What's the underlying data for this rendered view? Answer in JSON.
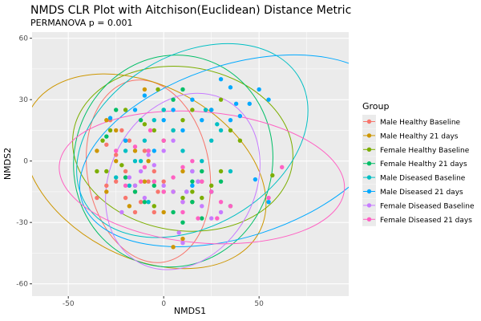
{
  "chart_data": {
    "type": "scatter",
    "title": "NMDS CLR Plot with Aitchison(Euclidean) Distance Metric",
    "subtitle": "PERMANOVA p = 0.001",
    "xlabel": "NMDS1",
    "ylabel": "NMDS2",
    "xlim": [
      -69,
      97
    ],
    "ylim": [
      -66,
      63
    ],
    "x_ticks": [
      -50,
      0,
      50
    ],
    "y_ticks": [
      -60,
      -30,
      0,
      30,
      60
    ],
    "x_tick_labels": [
      "-50",
      "0",
      "50"
    ],
    "y_tick_labels": [
      "-60",
      "-30",
      "0",
      "30",
      "60"
    ],
    "grid": true,
    "legend": {
      "title": "Group",
      "position": "right"
    },
    "series": [
      {
        "name": "Male Healthy Baseline",
        "color": "#F8766D",
        "points": [
          [
            -35,
            -18
          ],
          [
            -25,
            -10
          ],
          [
            -20,
            -5
          ],
          [
            -15,
            -15
          ],
          [
            -12,
            -20
          ],
          [
            -8,
            -10
          ],
          [
            -5,
            -25
          ],
          [
            -3,
            -15
          ],
          [
            -10,
            5
          ],
          [
            -18,
            10
          ],
          [
            -22,
            15
          ],
          [
            -28,
            20
          ],
          [
            -30,
            8
          ],
          [
            -25,
            3
          ],
          [
            -15,
            -25
          ],
          [
            -5,
            -5
          ],
          [
            0,
            -10
          ],
          [
            5,
            -15
          ],
          [
            10,
            -20
          ],
          [
            -20,
            -18
          ],
          [
            -30,
            -12
          ]
        ],
        "ellipse": {
          "cx": -8,
          "cy": -5,
          "rx": 32,
          "ry": 45,
          "angle": 10
        }
      },
      {
        "name": "Male Healthy 21 days",
        "color": "#CD9600",
        "points": [
          [
            -35,
            5
          ],
          [
            -30,
            20
          ],
          [
            -25,
            15
          ],
          [
            -20,
            10
          ],
          [
            -15,
            5
          ],
          [
            -8,
            0
          ],
          [
            -5,
            -10
          ],
          [
            0,
            -25
          ],
          [
            5,
            -15
          ],
          [
            10,
            -5
          ],
          [
            10,
            -38
          ],
          [
            5,
            -42
          ],
          [
            -10,
            -10
          ],
          [
            -25,
            0
          ],
          [
            -18,
            -22
          ],
          [
            -10,
            35
          ],
          [
            -30,
            -15
          ],
          [
            0,
            -15
          ],
          [
            15,
            -20
          ],
          [
            20,
            -10
          ]
        ],
        "ellipse": {
          "cx": -10,
          "cy": -5,
          "rx": 68,
          "ry": 42,
          "angle": -28
        }
      },
      {
        "name": "Female Healthy Baseline",
        "color": "#7CAE00",
        "points": [
          [
            -35,
            -5
          ],
          [
            -32,
            10
          ],
          [
            -28,
            15
          ],
          [
            -20,
            25
          ],
          [
            -10,
            18
          ],
          [
            -5,
            15
          ],
          [
            0,
            10
          ],
          [
            5,
            15
          ],
          [
            10,
            20
          ],
          [
            15,
            25
          ],
          [
            25,
            25
          ],
          [
            30,
            30
          ],
          [
            35,
            15
          ],
          [
            40,
            10
          ],
          [
            30,
            -5
          ],
          [
            -22,
            -2
          ],
          [
            -15,
            -12
          ],
          [
            -5,
            -22
          ],
          [
            10,
            -18
          ],
          [
            15,
            -15
          ],
          [
            20,
            -18
          ],
          [
            25,
            -12
          ],
          [
            -3,
            35
          ],
          [
            57,
            -7
          ],
          [
            -30,
            -5
          ]
        ],
        "ellipse": {
          "cx": 10,
          "cy": 6,
          "rx": 58,
          "ry": 40,
          "angle": -8
        }
      },
      {
        "name": "Female Healthy 21 days",
        "color": "#00BE67",
        "points": [
          [
            -30,
            12
          ],
          [
            -25,
            25
          ],
          [
            -20,
            -8
          ],
          [
            -15,
            -15
          ],
          [
            -10,
            -20
          ],
          [
            -5,
            -12
          ],
          [
            5,
            -25
          ],
          [
            10,
            -30
          ],
          [
            15,
            -20
          ],
          [
            20,
            -28
          ],
          [
            25,
            -15
          ],
          [
            -12,
            20
          ],
          [
            -8,
            5
          ],
          [
            0,
            25
          ],
          [
            5,
            30
          ],
          [
            10,
            35
          ],
          [
            15,
            -10
          ],
          [
            20,
            -5
          ],
          [
            30,
            -10
          ],
          [
            35,
            -22
          ]
        ],
        "ellipse": {
          "cx": 5,
          "cy": 0,
          "rx": 52,
          "ry": 52,
          "angle": -15
        }
      },
      {
        "name": "Male Diseased Baseline",
        "color": "#00BFC4",
        "points": [
          [
            -20,
            5
          ],
          [
            -15,
            0
          ],
          [
            -10,
            10
          ],
          [
            -5,
            20
          ],
          [
            0,
            25
          ],
          [
            5,
            15
          ],
          [
            10,
            5
          ],
          [
            15,
            -5
          ],
          [
            20,
            0
          ],
          [
            25,
            10
          ],
          [
            30,
            15
          ],
          [
            35,
            -5
          ],
          [
            -25,
            -8
          ],
          [
            -18,
            -12
          ],
          [
            -8,
            -20
          ],
          [
            12,
            -15
          ],
          [
            18,
            -10
          ],
          [
            -12,
            0
          ],
          [
            22,
            25
          ],
          [
            28,
            18
          ]
        ],
        "ellipse": {
          "cx": 15,
          "cy": 10,
          "rx": 65,
          "ry": 42,
          "angle": 30
        }
      },
      {
        "name": "Male Diseased 21 days",
        "color": "#00A9FF",
        "points": [
          [
            -28,
            21
          ],
          [
            -20,
            10
          ],
          [
            -15,
            25
          ],
          [
            -10,
            32
          ],
          [
            -5,
            5
          ],
          [
            0,
            20
          ],
          [
            5,
            25
          ],
          [
            10,
            15
          ],
          [
            15,
            30
          ],
          [
            20,
            20
          ],
          [
            25,
            25
          ],
          [
            30,
            40
          ],
          [
            35,
            36
          ],
          [
            40,
            22
          ],
          [
            45,
            28
          ],
          [
            50,
            35
          ],
          [
            55,
            30
          ],
          [
            48,
            -9
          ],
          [
            55,
            -20
          ],
          [
            35,
            20
          ],
          [
            38,
            28
          ],
          [
            25,
            -15
          ],
          [
            15,
            -12
          ]
        ],
        "ellipse": {
          "cx": 38,
          "cy": 5,
          "rx": 85,
          "ry": 42,
          "angle": 18
        }
      },
      {
        "name": "Female Diseased Baseline",
        "color": "#C77CFF",
        "points": [
          [
            -18,
            -8
          ],
          [
            -12,
            -5
          ],
          [
            -8,
            3
          ],
          [
            -5,
            -2
          ],
          [
            0,
            -12
          ],
          [
            5,
            -15
          ],
          [
            10,
            -20
          ],
          [
            15,
            -5
          ],
          [
            20,
            -22
          ],
          [
            25,
            -28
          ],
          [
            30,
            -25
          ],
          [
            -10,
            -18
          ],
          [
            -15,
            -12
          ],
          [
            -22,
            -25
          ],
          [
            0,
            5
          ],
          [
            5,
            10
          ],
          [
            8,
            -35
          ],
          [
            10,
            -40
          ],
          [
            12,
            -15
          ],
          [
            18,
            -10
          ]
        ],
        "ellipse": {
          "cx": 10,
          "cy": -10,
          "rx": 38,
          "ry": 45,
          "angle": -28
        }
      },
      {
        "name": "Female Diseased 21 days",
        "color": "#FF61C3",
        "points": [
          [
            -25,
            5
          ],
          [
            -15,
            7
          ],
          [
            -10,
            -3
          ],
          [
            -5,
            -10
          ],
          [
            0,
            -15
          ],
          [
            5,
            -8
          ],
          [
            10,
            -3
          ],
          [
            15,
            0
          ],
          [
            20,
            -10
          ],
          [
            25,
            -15
          ],
          [
            30,
            -20
          ],
          [
            35,
            -22
          ],
          [
            55,
            -18
          ],
          [
            62,
            -3
          ],
          [
            -20,
            -12
          ],
          [
            -8,
            5
          ],
          [
            0,
            10
          ],
          [
            10,
            -25
          ],
          [
            18,
            -28
          ],
          [
            28,
            -28
          ],
          [
            -12,
            -10
          ],
          [
            -7,
            15
          ]
        ],
        "ellipse": {
          "cx": 20,
          "cy": -8,
          "rx": 75,
          "ry": 32,
          "angle": -5
        }
      }
    ]
  }
}
